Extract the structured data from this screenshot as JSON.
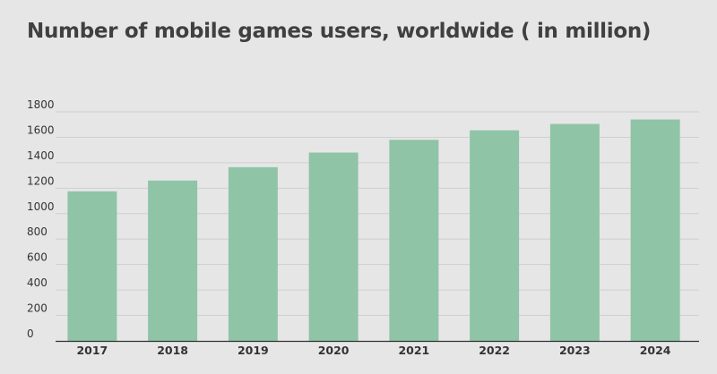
{
  "chart_data": {
    "type": "bar",
    "title": "Number of mobile games users, worldwide ( in million)",
    "xlabel": "",
    "ylabel": "",
    "categories": [
      "2017",
      "2018",
      "2019",
      "2020",
      "2021",
      "2022",
      "2023",
      "2024"
    ],
    "values": [
      1175,
      1260,
      1365,
      1480,
      1580,
      1655,
      1705,
      1740
    ],
    "ylim": [
      0,
      1800
    ],
    "yticks": [
      0,
      200,
      400,
      600,
      800,
      1000,
      1200,
      1400,
      1600,
      1800
    ],
    "grid": true,
    "legend": "none",
    "colors": {
      "bar": "#8fc4a7",
      "grid": "#cfcfcf",
      "axis": "#333333",
      "background": "#e6e6e6"
    }
  }
}
